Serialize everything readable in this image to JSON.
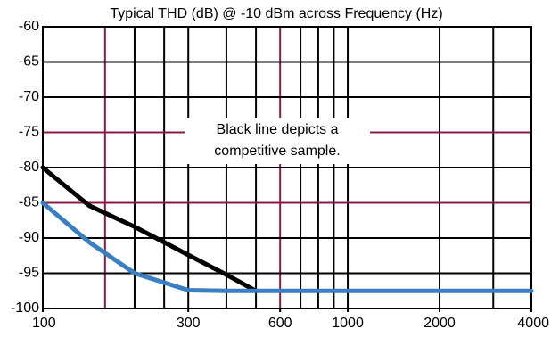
{
  "chart_data": {
    "type": "line",
    "title": "Typical THD (dB) @ -10 dBm across Frequency (Hz)",
    "annotation": [
      "Black line depicts a",
      "competitive sample."
    ],
    "log_x": true,
    "xlim": [
      100,
      4000
    ],
    "xticks": [
      100,
      300,
      600,
      1000,
      2000,
      4000
    ],
    "ylim": [
      -100,
      -60
    ],
    "yticks": [
      -60,
      -65,
      -70,
      -75,
      -80,
      -85,
      -90,
      -95,
      -100
    ],
    "xgrid": [
      160,
      200,
      250,
      300,
      400,
      500,
      600,
      700,
      800,
      900,
      1000,
      2000,
      3000
    ],
    "xgrid_highlight": [
      160,
      600
    ],
    "ygrid_highlight": [
      -75,
      -85
    ],
    "grid_color": "#000000",
    "highlight_color": "#8b1a4a",
    "series": [
      {
        "color": "#000000",
        "x": [
          100,
          142,
          200,
          300,
          400,
          500
        ],
        "values": [
          -80,
          -85.4,
          -88.4,
          -92.4,
          -95.2,
          -97.5
        ]
      },
      {
        "color": "#3a7fc1",
        "x": [
          100,
          142,
          200,
          300,
          400,
          4000
        ],
        "values": [
          -85,
          -90.6,
          -95,
          -97.4,
          -97.5,
          -97.5
        ]
      }
    ]
  }
}
